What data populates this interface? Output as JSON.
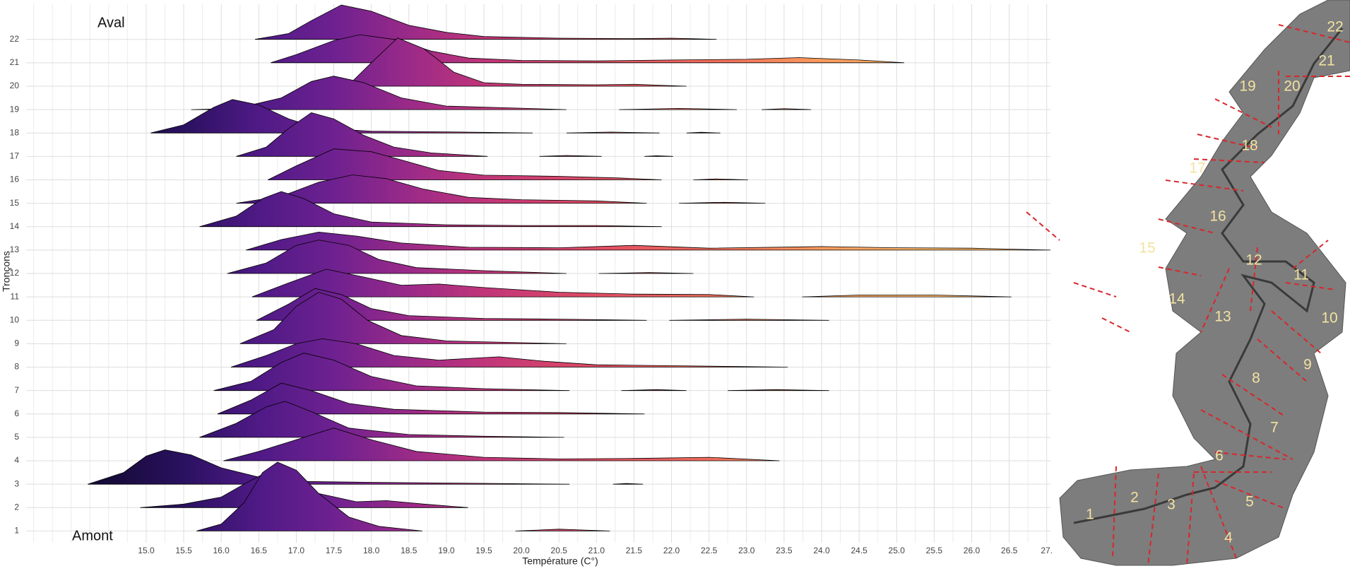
{
  "chart_data": {
    "type": "ridgeline",
    "xlabel": "Température (C°)",
    "ylabel": "Tronçons",
    "annotations": [
      "Aval",
      "Amont"
    ],
    "xlim": [
      13.4,
      27.05
    ],
    "ylim": [
      0.5,
      23.5
    ],
    "xticks": [
      {
        "value": 15,
        "label": "15.0"
      },
      15.5,
      {
        "value": 16,
        "label": "16.0"
      },
      16.5,
      {
        "value": 17,
        "label": "17.0"
      },
      17.5,
      {
        "value": 18,
        "label": "18.0"
      },
      18.5,
      {
        "value": 19,
        "label": "19.0"
      },
      19.5,
      {
        "value": 20,
        "label": "20.0"
      },
      20.5,
      {
        "value": 21,
        "label": "21.0"
      },
      21.5,
      {
        "value": 22,
        "label": "22.0"
      },
      22.5,
      {
        "value": 23,
        "label": "23.0"
      },
      23.5,
      {
        "value": 24,
        "label": "24.0"
      },
      24.5,
      {
        "value": 25,
        "label": "25.0"
      },
      25.5,
      {
        "value": 26,
        "label": "26.0"
      },
      26.5,
      {
        "value": 27,
        "label": "27."
      }
    ],
    "yticks": [
      1,
      2,
      3,
      4,
      5,
      6,
      7,
      8,
      9,
      10,
      11,
      12,
      13,
      14,
      15,
      16,
      17,
      18,
      19,
      20,
      21,
      22
    ],
    "grid": true,
    "gradient": [
      {
        "value": 14.5,
        "color": "#160b39"
      },
      {
        "value": 15.5,
        "color": "#2a1160"
      },
      {
        "value": 16.5,
        "color": "#4f1a86"
      },
      {
        "value": 17.5,
        "color": "#6e2190"
      },
      {
        "value": 18.5,
        "color": "#9a2a88"
      },
      {
        "value": 19.5,
        "color": "#c0357a"
      },
      {
        "value": 21,
        "color": "#e04c63"
      },
      {
        "value": 22.5,
        "color": "#f06c5a"
      },
      {
        "value": 24,
        "color": "#f89a5c"
      },
      {
        "value": 25.5,
        "color": "#fcb86a"
      }
    ],
    "series": [
      {
        "x": [
          15.67,
          16.0,
          16.3,
          16.55,
          16.75,
          17.0,
          17.3,
          17.7,
          18.1,
          18.68,
          null,
          19.92,
          20.5,
          21.18
        ],
        "values": [
          0,
          0.3,
          1.2,
          2.5,
          2.94,
          2.6,
          1.6,
          0.6,
          0.2,
          0,
          null,
          0,
          0.08,
          0
        ]
      },
      {
        "x": [
          14.92,
          15.5,
          16.0,
          16.3,
          16.6,
          16.9,
          17.3,
          17.8,
          18.2,
          18.7,
          19.29
        ],
        "values": [
          0,
          0.15,
          0.45,
          1.0,
          1.5,
          1.3,
          0.6,
          0.25,
          0.3,
          0.15,
          0
        ]
      },
      {
        "x": [
          14.22,
          14.7,
          15.0,
          15.25,
          15.6,
          16.0,
          16.5,
          17.0,
          18.0,
          19.0,
          20.64,
          null,
          21.22,
          21.4,
          21.62
        ],
        "values": [
          0,
          0.5,
          1.2,
          1.47,
          1.25,
          0.7,
          0.3,
          0.12,
          0.08,
          0.05,
          0,
          null,
          0,
          0.03,
          0
        ]
      },
      {
        "x": [
          16.03,
          16.5,
          17.0,
          17.5,
          18.0,
          18.6,
          19.5,
          20.5,
          21.5,
          22.5,
          23.44
        ],
        "values": [
          0,
          0.4,
          0.9,
          1.4,
          0.9,
          0.4,
          0.15,
          0.08,
          0.1,
          0.15,
          0
        ]
      },
      {
        "x": [
          15.71,
          16.2,
          16.6,
          16.85,
          17.2,
          17.7,
          18.5,
          19.5,
          20.57
        ],
        "values": [
          0,
          0.6,
          1.3,
          1.54,
          1.1,
          0.4,
          0.12,
          0.05,
          0
        ]
      },
      {
        "x": [
          15.95,
          16.4,
          16.8,
          17.2,
          17.7,
          18.3,
          19.5,
          20.5,
          21.64
        ],
        "values": [
          0,
          0.6,
          1.32,
          1.0,
          0.45,
          0.2,
          0.08,
          0.06,
          0
        ]
      },
      {
        "x": [
          15.9,
          16.4,
          16.8,
          17.1,
          17.5,
          18.0,
          18.6,
          19.5,
          20.64,
          null,
          21.33,
          21.8,
          22.2,
          null,
          22.75,
          23.4,
          24.1
        ],
        "values": [
          0,
          0.4,
          1.2,
          1.6,
          1.3,
          0.6,
          0.2,
          0.08,
          0,
          null,
          0,
          0.04,
          0,
          null,
          0,
          0.04,
          0
        ]
      },
      {
        "x": [
          16.13,
          16.6,
          17.0,
          17.35,
          17.8,
          18.3,
          18.9,
          19.7,
          20.3,
          21.0,
          22.0,
          23.55
        ],
        "values": [
          0,
          0.5,
          1.0,
          1.21,
          1.0,
          0.5,
          0.3,
          0.44,
          0.25,
          0.1,
          0.06,
          0
        ]
      },
      {
        "x": [
          16.25,
          16.7,
          17.0,
          17.3,
          17.6,
          17.95,
          18.4,
          19.0,
          20.6
        ],
        "values": [
          0,
          0.6,
          1.6,
          2.2,
          1.9,
          1.0,
          0.35,
          0.12,
          0
        ]
      },
      {
        "x": [
          16.47,
          16.9,
          17.25,
          17.6,
          18.0,
          18.5,
          19.5,
          20.5,
          21.67,
          null,
          21.97,
          23.0,
          24.1
        ],
        "values": [
          0,
          0.7,
          1.36,
          1.1,
          0.5,
          0.2,
          0.08,
          0.05,
          0,
          null,
          0,
          0.05,
          0
        ]
      },
      {
        "x": [
          16.41,
          16.9,
          17.4,
          17.9,
          18.4,
          18.9,
          19.5,
          20.5,
          21.5,
          22.5,
          23.1,
          null,
          23.74,
          24.5,
          25.5,
          26.53
        ],
        "values": [
          0,
          0.6,
          1.18,
          0.85,
          0.5,
          0.55,
          0.4,
          0.2,
          0.12,
          0.1,
          0,
          null,
          0,
          0.08,
          0.08,
          0
        ]
      },
      {
        "x": [
          16.08,
          16.6,
          17.0,
          17.3,
          17.7,
          18.1,
          18.6,
          19.5,
          20.6,
          null,
          21.03,
          21.7,
          22.29
        ],
        "values": [
          0,
          0.45,
          1.2,
          1.43,
          1.2,
          0.6,
          0.25,
          0.12,
          0,
          null,
          0,
          0.04,
          0
        ]
      },
      {
        "x": [
          16.33,
          16.8,
          17.3,
          17.8,
          18.4,
          19.3,
          20.5,
          21.5,
          22.5,
          24.0,
          25.0,
          26.0,
          27.05
        ],
        "values": [
          0,
          0.45,
          0.77,
          0.6,
          0.3,
          0.12,
          0.1,
          0.2,
          0.08,
          0.15,
          0.1,
          0.08,
          0
        ]
      },
      {
        "x": [
          15.71,
          16.2,
          16.55,
          16.8,
          17.1,
          17.5,
          18.0,
          19.0,
          20.0,
          21.0,
          21.87
        ],
        "values": [
          0,
          0.45,
          1.2,
          1.5,
          1.2,
          0.55,
          0.2,
          0.08,
          0.05,
          0.05,
          0
        ]
      },
      {
        "x": [
          16.2,
          16.8,
          17.3,
          17.75,
          18.2,
          18.7,
          19.3,
          20.0,
          21.0,
          21.67,
          null,
          22.1,
          22.7,
          23.25
        ],
        "values": [
          0,
          0.3,
          0.9,
          1.21,
          1.05,
          0.6,
          0.25,
          0.15,
          0.1,
          0,
          null,
          0,
          0.04,
          0
        ]
      },
      {
        "x": [
          16.62,
          17.0,
          17.5,
          18.0,
          18.4,
          18.9,
          19.5,
          20.5,
          21.3,
          21.87,
          null,
          22.29,
          22.6,
          23.02
        ],
        "values": [
          0,
          0.6,
          1.32,
          1.2,
          0.85,
          0.4,
          0.2,
          0.15,
          0.08,
          0,
          null,
          0,
          0.04,
          0
        ]
      },
      {
        "x": [
          16.2,
          16.6,
          16.9,
          17.2,
          17.5,
          17.9,
          18.3,
          18.8,
          19.55,
          null,
          20.24,
          20.6,
          21.07,
          null,
          21.64,
          21.8,
          22.02
        ],
        "values": [
          0,
          0.4,
          1.2,
          1.87,
          1.6,
          0.9,
          0.4,
          0.15,
          0,
          null,
          0,
          0.04,
          0,
          null,
          0,
          0.03,
          0
        ]
      },
      {
        "x": [
          15.06,
          15.5,
          15.9,
          16.15,
          16.5,
          16.9,
          17.3,
          18.0,
          19.0,
          20.15,
          null,
          20.6,
          21.2,
          21.84,
          null,
          22.2,
          22.4,
          22.65
        ],
        "values": [
          0,
          0.35,
          1.1,
          1.43,
          1.2,
          0.6,
          0.2,
          0.08,
          0.05,
          0,
          null,
          0,
          0.04,
          0,
          null,
          0,
          0.03,
          0
        ]
      },
      {
        "x": [
          15.6,
          16.2,
          16.8,
          17.2,
          17.5,
          17.9,
          18.4,
          19.0,
          20.0,
          20.6,
          null,
          21.3,
          22.1,
          22.87,
          null,
          23.2,
          23.5,
          23.86
        ],
        "values": [
          0,
          0.05,
          0.5,
          1.2,
          1.43,
          1.15,
          0.5,
          0.15,
          0.06,
          0,
          null,
          0,
          0.05,
          0,
          null,
          0,
          0.04,
          0
        ]
      },
      {
        "x": [
          17.68,
          18.0,
          18.35,
          18.7,
          19.1,
          19.5,
          20.0,
          21.0,
          21.5,
          22.2
        ],
        "values": [
          0,
          1.0,
          2.06,
          1.6,
          0.6,
          0.15,
          0.08,
          0.06,
          0.08,
          0
        ]
      },
      {
        "x": [
          16.66,
          17.0,
          17.5,
          17.85,
          18.3,
          18.8,
          19.3,
          20.0,
          21.0,
          22.0,
          23.0,
          23.7,
          24.5,
          25.1
        ],
        "values": [
          0,
          0.35,
          0.95,
          1.2,
          1.0,
          0.5,
          0.2,
          0.1,
          0.08,
          0.12,
          0.15,
          0.22,
          0.12,
          0
        ]
      },
      {
        "x": [
          16.45,
          16.9,
          17.2,
          17.6,
          18.0,
          18.5,
          19.0,
          19.5,
          20.5,
          21.5,
          22.0,
          22.6
        ],
        "values": [
          0,
          0.25,
          0.8,
          1.47,
          1.2,
          0.6,
          0.3,
          0.12,
          0.05,
          0.03,
          0.05,
          0
        ]
      }
    ]
  },
  "map": {
    "labels": [
      "1",
      "2",
      "3",
      "4",
      "5",
      "6",
      "7",
      "8",
      "9",
      "10",
      "11",
      "12",
      "13",
      "14",
      "15",
      "16",
      "17",
      "18",
      "19",
      "20",
      "21",
      "22"
    ]
  }
}
